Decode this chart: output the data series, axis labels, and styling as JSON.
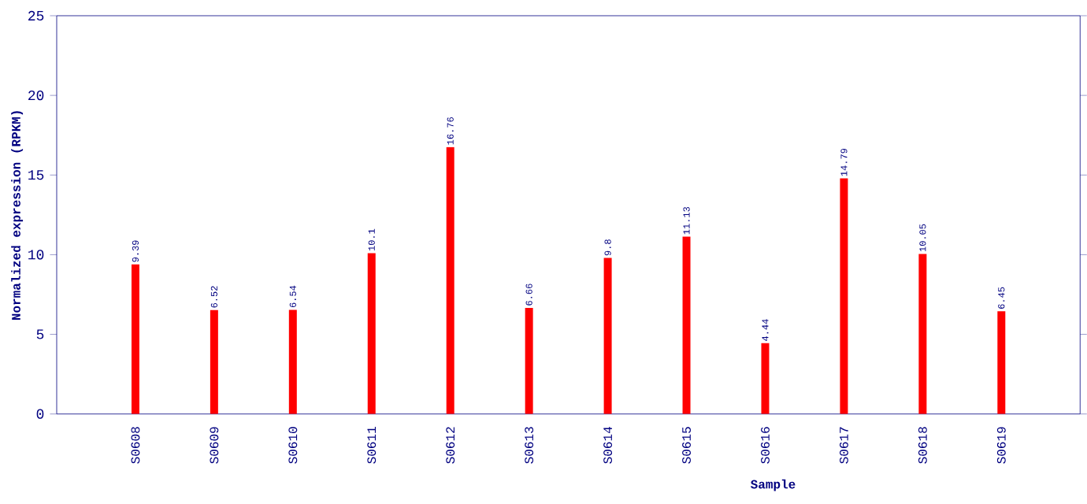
{
  "chart_data": {
    "type": "bar",
    "xlabel": "Sample",
    "ylabel": "Normalized expression (RPKM)",
    "categories": [
      "S0608",
      "S0609",
      "S0610",
      "S0611",
      "S0612",
      "S0613",
      "S0614",
      "S0615",
      "S0616",
      "S0617",
      "S0618",
      "S0619"
    ],
    "values": [
      9.39,
      6.52,
      6.54,
      10.1,
      16.76,
      6.66,
      9.8,
      11.13,
      4.44,
      14.79,
      10.05,
      6.45
    ],
    "color": "#ff0000",
    "ylim": [
      0,
      25
    ],
    "yticks": [
      0,
      5,
      10,
      15,
      20,
      25
    ],
    "data_labels": true,
    "grid": false
  }
}
